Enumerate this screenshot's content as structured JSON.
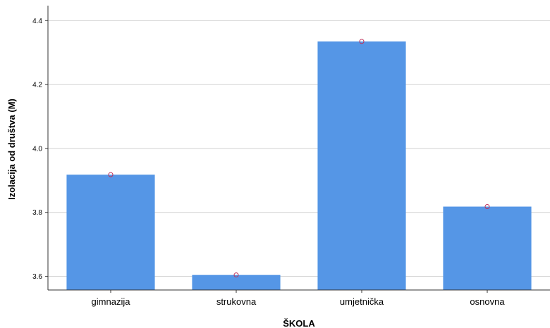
{
  "chart_data": {
    "type": "bar",
    "title": "",
    "xlabel": "ŠKOLA",
    "ylabel": "Izolacija od društva (M)",
    "categories": [
      "gimnazija",
      "strukovna",
      "umjetnička",
      "osnovna"
    ],
    "values": [
      3.918,
      3.604,
      4.335,
      3.818
    ],
    "ylim": [
      3.557,
      4.447
    ],
    "yticks": [
      "3.6",
      "3.8",
      "4.0",
      "4.2",
      "4.4"
    ],
    "grid": true,
    "legend": "none",
    "markers": "circle at top of each bar",
    "colors": {
      "bar": "#5596e6",
      "marker": "#c0315a",
      "grid": "#d0d0d0",
      "axis": "#333333"
    }
  }
}
